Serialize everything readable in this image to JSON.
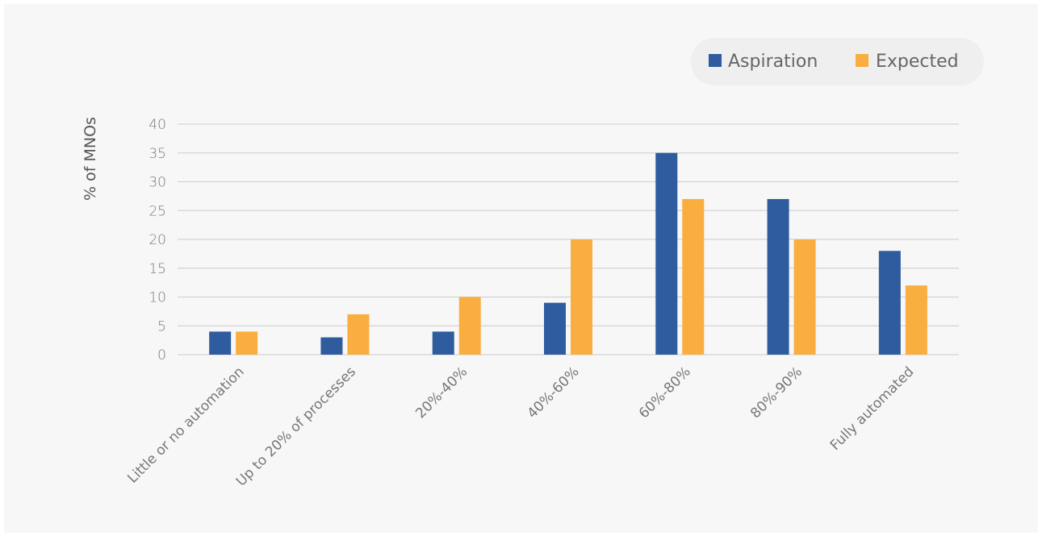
{
  "chart_data": {
    "type": "bar",
    "title": "",
    "xlabel": "",
    "ylabel": "% of MNOs",
    "ylim": [
      0,
      40
    ],
    "yticks": [
      0,
      5,
      10,
      15,
      20,
      25,
      30,
      35,
      40
    ],
    "grid": true,
    "legend_position": "top-right",
    "categories": [
      "Little or no automation",
      "Up to 20% of processes",
      "20%-40%",
      "40%-60%",
      "60%-80%",
      "80%-90%",
      "Fully automated"
    ],
    "series": [
      {
        "name": "Aspiration",
        "color": "#2e5c9e",
        "values": [
          4,
          3,
          4,
          9,
          35,
          27,
          18
        ]
      },
      {
        "name": "Expected",
        "color": "#f9ae3f",
        "values": [
          4,
          7,
          10,
          20,
          27,
          20,
          12
        ]
      }
    ]
  }
}
